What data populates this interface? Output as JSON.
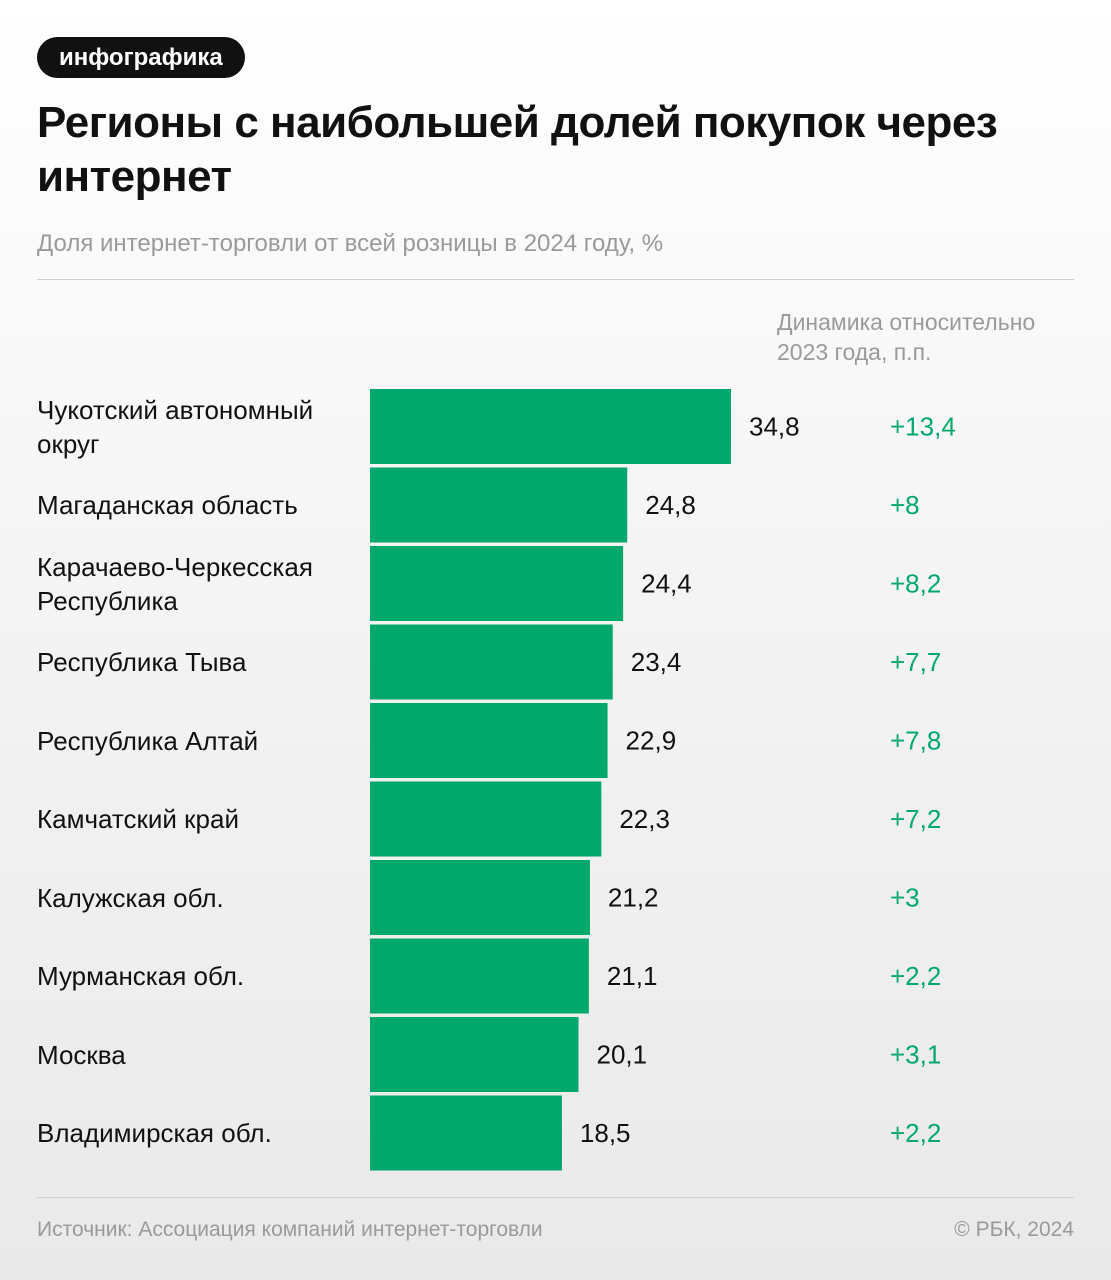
{
  "badge": "инфографика",
  "title": "Регионы с наибольшей долей покупок через интернет",
  "subtitle": "Доля интернет-торговли от всей розницы в 2024 году, %",
  "dynamics_header": "Динамика относительно 2023 года, п.п.",
  "source": "Источник: Ассоциация компаний интернет-торговли",
  "copyright": "© РБК, 2024",
  "colors": {
    "bar": "#00A86B",
    "delta": "#00A86B",
    "muted": "#9a9a9a"
  },
  "chart_data": {
    "type": "bar",
    "orientation": "horizontal",
    "title": "Регионы с наибольшей долей покупок через интернет",
    "subtitle": "Доля интернет-торговли от всей розницы в 2024 году, %",
    "categories": [
      "Чукотский автономный округ",
      "Магаданская область",
      "Карачаево-Черкесская Республика",
      "Республика Тыва",
      "Республика Алтай",
      "Камчатский край",
      "Калужская обл.",
      "Мурманская обл.",
      "Москва",
      "Владимирская обл."
    ],
    "values": [
      34.8,
      24.8,
      24.4,
      23.4,
      22.9,
      22.3,
      21.2,
      21.1,
      20.1,
      18.5
    ],
    "value_labels": [
      "34,8",
      "24,8",
      "24,4",
      "23,4",
      "22,9",
      "22,3",
      "21,2",
      "21,1",
      "20,1",
      "18,5"
    ],
    "delta_header": "Динамика относительно 2023 года, п.п.",
    "deltas": [
      13.4,
      8,
      8.2,
      7.7,
      7.8,
      7.2,
      3,
      2.2,
      3.1,
      2.2
    ],
    "delta_labels": [
      "+13,4",
      "+8",
      "+8,2",
      "+7,7",
      "+7,8",
      "+7,2",
      "+3",
      "+2,2",
      "+3,1",
      "+2,2"
    ],
    "xlim": [
      0,
      34.8
    ],
    "grid": false,
    "legend": "none"
  }
}
